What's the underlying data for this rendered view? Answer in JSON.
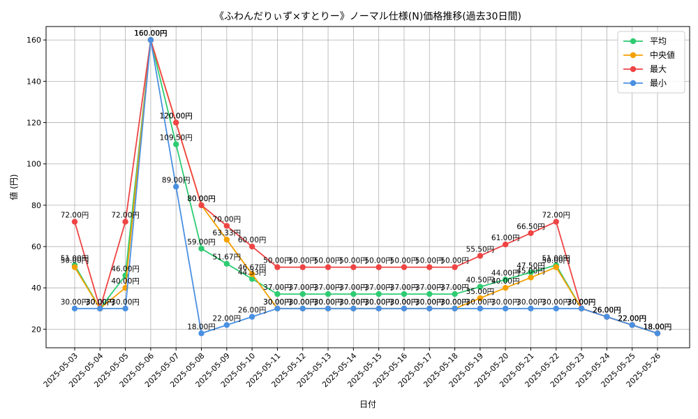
{
  "chart_data": {
    "type": "line",
    "title": "《ふわんだりぃず×すとりー》ノーマル仕様(N)価格推移(過去30日間)",
    "xlabel": "日付",
    "ylabel": "値 (円)",
    "ylim": [
      11,
      166.5
    ],
    "yticks": [
      20,
      40,
      60,
      80,
      100,
      120,
      140,
      160
    ],
    "grid": true,
    "legend_position": "top-right",
    "label_suffix": "円",
    "categories": [
      "2025-05-03",
      "2025-05-04",
      "2025-05-05",
      "2025-05-06",
      "2025-05-07",
      "2025-05-08",
      "2025-05-09",
      "2025-05-10",
      "2025-05-11",
      "2025-05-12",
      "2025-05-13",
      "2025-05-14",
      "2025-05-15",
      "2025-05-16",
      "2025-05-17",
      "2025-05-18",
      "2025-05-19",
      "2025-05-20",
      "2025-05-21",
      "2025-05-22",
      "2025-05-23",
      "2025-05-24",
      "2025-05-25",
      "2025-05-26"
    ],
    "series": [
      {
        "name": "平均",
        "color": "#2ecc71",
        "values": [
          51.0,
          30.0,
          46.0,
          160.0,
          109.5,
          59.0,
          51.67,
          44.33,
          37.0,
          37.0,
          37.0,
          37.0,
          37.0,
          37.0,
          37.0,
          37.0,
          40.5,
          44.0,
          47.5,
          51.0,
          30.0,
          26.0,
          22.0,
          18.0
        ]
      },
      {
        "name": "中央値",
        "color": "#f5a000",
        "values": [
          50.0,
          30.0,
          40.0,
          160.0,
          120.0,
          80.0,
          63.33,
          46.67,
          30.0,
          30.0,
          30.0,
          30.0,
          30.0,
          30.0,
          30.0,
          30.0,
          35.0,
          40.0,
          45.0,
          50.0,
          30.0,
          26.0,
          22.0,
          18.0
        ]
      },
      {
        "name": "最大",
        "color": "#ef4444",
        "values": [
          72.0,
          30.0,
          72.0,
          160.0,
          120.0,
          80.0,
          70.0,
          60.0,
          50.0,
          50.0,
          50.0,
          50.0,
          50.0,
          50.0,
          50.0,
          50.0,
          55.5,
          61.0,
          66.5,
          72.0,
          30.0,
          26.0,
          22.0,
          18.0
        ]
      },
      {
        "name": "最小",
        "color": "#4a90e2",
        "values": [
          30.0,
          30.0,
          30.0,
          160.0,
          89.0,
          18.0,
          22.0,
          26.0,
          30.0,
          30.0,
          30.0,
          30.0,
          30.0,
          30.0,
          30.0,
          30.0,
          30.0,
          30.0,
          30.0,
          30.0,
          30.0,
          26.0,
          22.0,
          18.0
        ]
      }
    ]
  }
}
